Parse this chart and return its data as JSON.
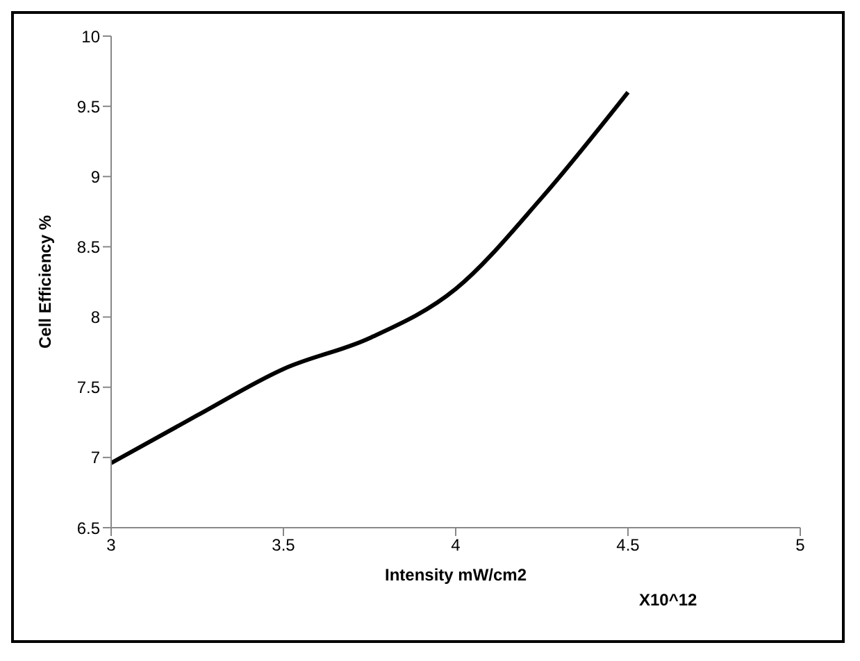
{
  "chart_data": {
    "type": "line",
    "xlabel": "Intensity mW/cm2",
    "ylabel": "Cell Efficiency %",
    "annotations": [
      "X10^12"
    ],
    "x": [
      3,
      3.25,
      3.5,
      3.75,
      4,
      4.25,
      4.5
    ],
    "series": [
      {
        "color": "#000000",
        "values": [
          6.96,
          7.3,
          7.63,
          7.85,
          8.2,
          8.85,
          9.6
        ]
      }
    ],
    "xlim": [
      3,
      5
    ],
    "xticks": [
      3,
      3.5,
      4,
      4.5,
      5
    ],
    "ylim": [
      6.5,
      10
    ],
    "yticks": [
      6.5,
      7,
      7.5,
      8,
      8.5,
      9,
      9.5,
      10
    ],
    "grid": false,
    "legend": false,
    "marker": "none",
    "line_style": "solid"
  }
}
